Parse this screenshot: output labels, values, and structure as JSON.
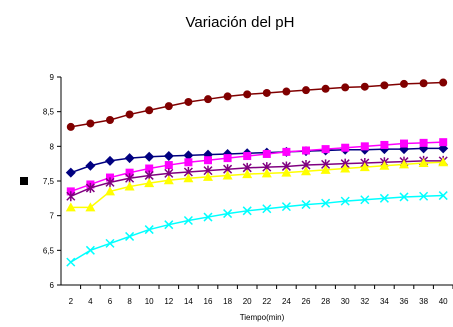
{
  "chart_data": {
    "type": "line",
    "title": "Variación del pH",
    "xlabel": "Tiempo(min)",
    "ylabel": "",
    "ylim": [
      6,
      9
    ],
    "yticks": [
      "6",
      "6,5",
      "7",
      "7,5",
      "8",
      "8,5",
      "9"
    ],
    "x": [
      2,
      4,
      6,
      8,
      10,
      12,
      14,
      16,
      18,
      20,
      22,
      24,
      26,
      28,
      30,
      32,
      34,
      36,
      38,
      40
    ],
    "xtick_labels": [
      "2",
      "4",
      "6",
      "8",
      "10",
      "12",
      "14",
      "16",
      "18",
      "20",
      "22",
      "24",
      "26",
      "28",
      "30",
      "32",
      "34",
      "36",
      "38",
      "40"
    ],
    "grid": false,
    "legend": "left",
    "series": [
      {
        "color": "#800000",
        "marker": "circle",
        "values": [
          8.28,
          8.33,
          8.38,
          8.46,
          8.52,
          8.58,
          8.64,
          8.68,
          8.72,
          8.75,
          8.77,
          8.79,
          8.81,
          8.83,
          8.85,
          8.86,
          8.88,
          8.9,
          8.91,
          8.92
        ]
      },
      {
        "color": "#000080",
        "marker": "diamond",
        "values": [
          7.62,
          7.72,
          7.79,
          7.83,
          7.85,
          7.86,
          7.87,
          7.88,
          7.89,
          7.9,
          7.91,
          7.92,
          7.93,
          7.94,
          7.95,
          7.95,
          7.96,
          7.96,
          7.97,
          7.97
        ]
      },
      {
        "color": "#FF00FF",
        "marker": "square",
        "values": [
          7.35,
          7.45,
          7.55,
          7.62,
          7.68,
          7.73,
          7.77,
          7.8,
          7.83,
          7.86,
          7.89,
          7.92,
          7.94,
          7.96,
          7.98,
          8.0,
          8.02,
          8.04,
          8.05,
          8.06
        ]
      },
      {
        "color": "#800080",
        "marker": "asterisk",
        "values": [
          7.28,
          7.4,
          7.48,
          7.54,
          7.58,
          7.61,
          7.63,
          7.65,
          7.67,
          7.69,
          7.7,
          7.71,
          7.73,
          7.74,
          7.75,
          7.76,
          7.77,
          7.78,
          7.79,
          7.79
        ]
      },
      {
        "color": "#FFFF00",
        "marker": "triangle",
        "values": [
          7.12,
          7.12,
          7.35,
          7.42,
          7.47,
          7.51,
          7.54,
          7.56,
          7.58,
          7.6,
          7.61,
          7.62,
          7.64,
          7.66,
          7.68,
          7.7,
          7.72,
          7.74,
          7.76,
          7.77
        ]
      },
      {
        "color": "#00FFFF",
        "marker": "x",
        "values": [
          6.33,
          6.5,
          6.6,
          6.7,
          6.8,
          6.87,
          6.93,
          6.98,
          7.03,
          7.07,
          7.1,
          7.13,
          7.16,
          7.18,
          7.21,
          7.23,
          7.25,
          7.27,
          7.28,
          7.29
        ]
      }
    ],
    "legend_marker_color": "#000000"
  }
}
